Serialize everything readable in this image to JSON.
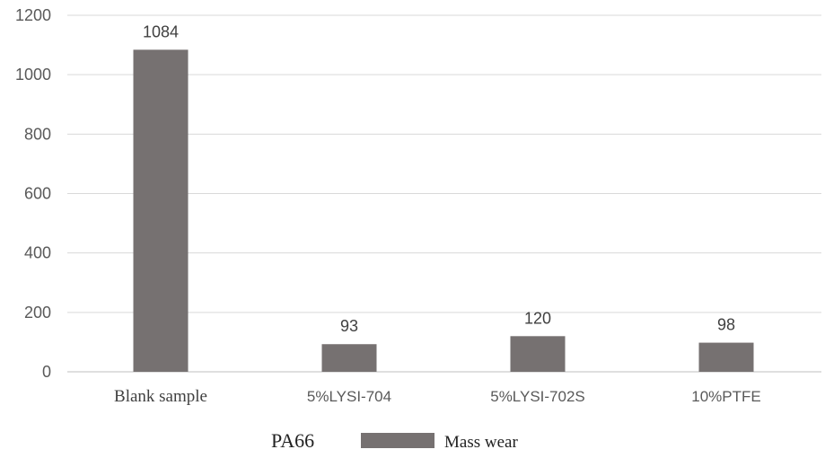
{
  "chart_data": {
    "type": "bar",
    "categories": [
      "Blank sample",
      "5%LYSI-704",
      "5%LYSI-702S",
      "10%PTFE"
    ],
    "series": [
      {
        "name": "Mass wear",
        "values": [
          1084,
          93,
          120,
          98
        ]
      }
    ],
    "data_labels": [
      "1084",
      "93",
      "120",
      "98"
    ],
    "yticks": [
      "0",
      "200",
      "400",
      "600",
      "800",
      "1000",
      "1200"
    ],
    "ylim": [
      0,
      1200
    ],
    "grid": true,
    "legend": {
      "title": "PA66",
      "position": "bottom-center"
    },
    "title": "",
    "xlabel": "",
    "ylabel": "",
    "colors": {
      "bar": "#767171",
      "grid": "#d9d9d9",
      "axis": "#bfbfbf"
    }
  }
}
